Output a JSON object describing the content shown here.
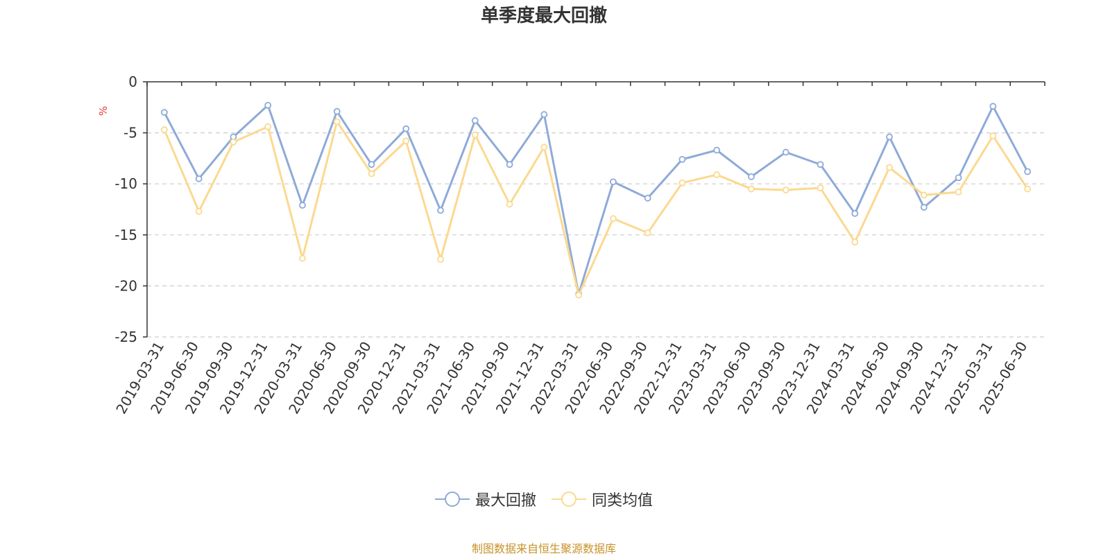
{
  "chart_data": {
    "type": "line",
    "title": "单季度最大回撤",
    "ylabel": "%",
    "ylim": [
      -25,
      0
    ],
    "yticks": [
      0,
      -5,
      -10,
      -15,
      -20,
      -25
    ],
    "grid": "horizontal dashed",
    "legend_position": "bottom-center",
    "categories": [
      "2019-03-31",
      "2019-06-30",
      "2019-09-30",
      "2019-12-31",
      "2020-03-31",
      "2020-06-30",
      "2020-09-30",
      "2020-12-31",
      "2021-03-31",
      "2021-06-30",
      "2021-09-30",
      "2021-12-31",
      "2022-03-31",
      "2022-06-30",
      "2022-09-30",
      "2022-12-31",
      "2023-03-31",
      "2023-06-30",
      "2023-09-30",
      "2023-12-31",
      "2024-03-31",
      "2024-06-30",
      "2024-09-30",
      "2024-12-31",
      "2025-03-31",
      "2025-06-30"
    ],
    "series": [
      {
        "name": "最大回撤",
        "color": "#8eaad8",
        "values": [
          -3.0,
          -9.5,
          -5.4,
          -2.3,
          -12.1,
          -2.9,
          -8.1,
          -4.6,
          -12.6,
          -3.8,
          -8.1,
          -3.2,
          -20.8,
          -9.8,
          -11.4,
          -7.6,
          -6.7,
          -9.3,
          -6.9,
          -8.1,
          -12.9,
          -5.4,
          -12.3,
          -9.4,
          -2.4,
          -8.8
        ]
      },
      {
        "name": "同类均值",
        "color": "#fbd98f",
        "values": [
          -4.7,
          -12.7,
          -5.9,
          -4.4,
          -17.3,
          -3.9,
          -9.0,
          -5.8,
          -17.4,
          -5.2,
          -12.0,
          -6.4,
          -20.9,
          -13.4,
          -14.8,
          -9.9,
          -9.1,
          -10.5,
          -10.6,
          -10.4,
          -15.7,
          -8.4,
          -11.1,
          -10.8,
          -5.3,
          -10.5
        ]
      }
    ]
  },
  "source_note": "制图数据来自恒生聚源数据库"
}
